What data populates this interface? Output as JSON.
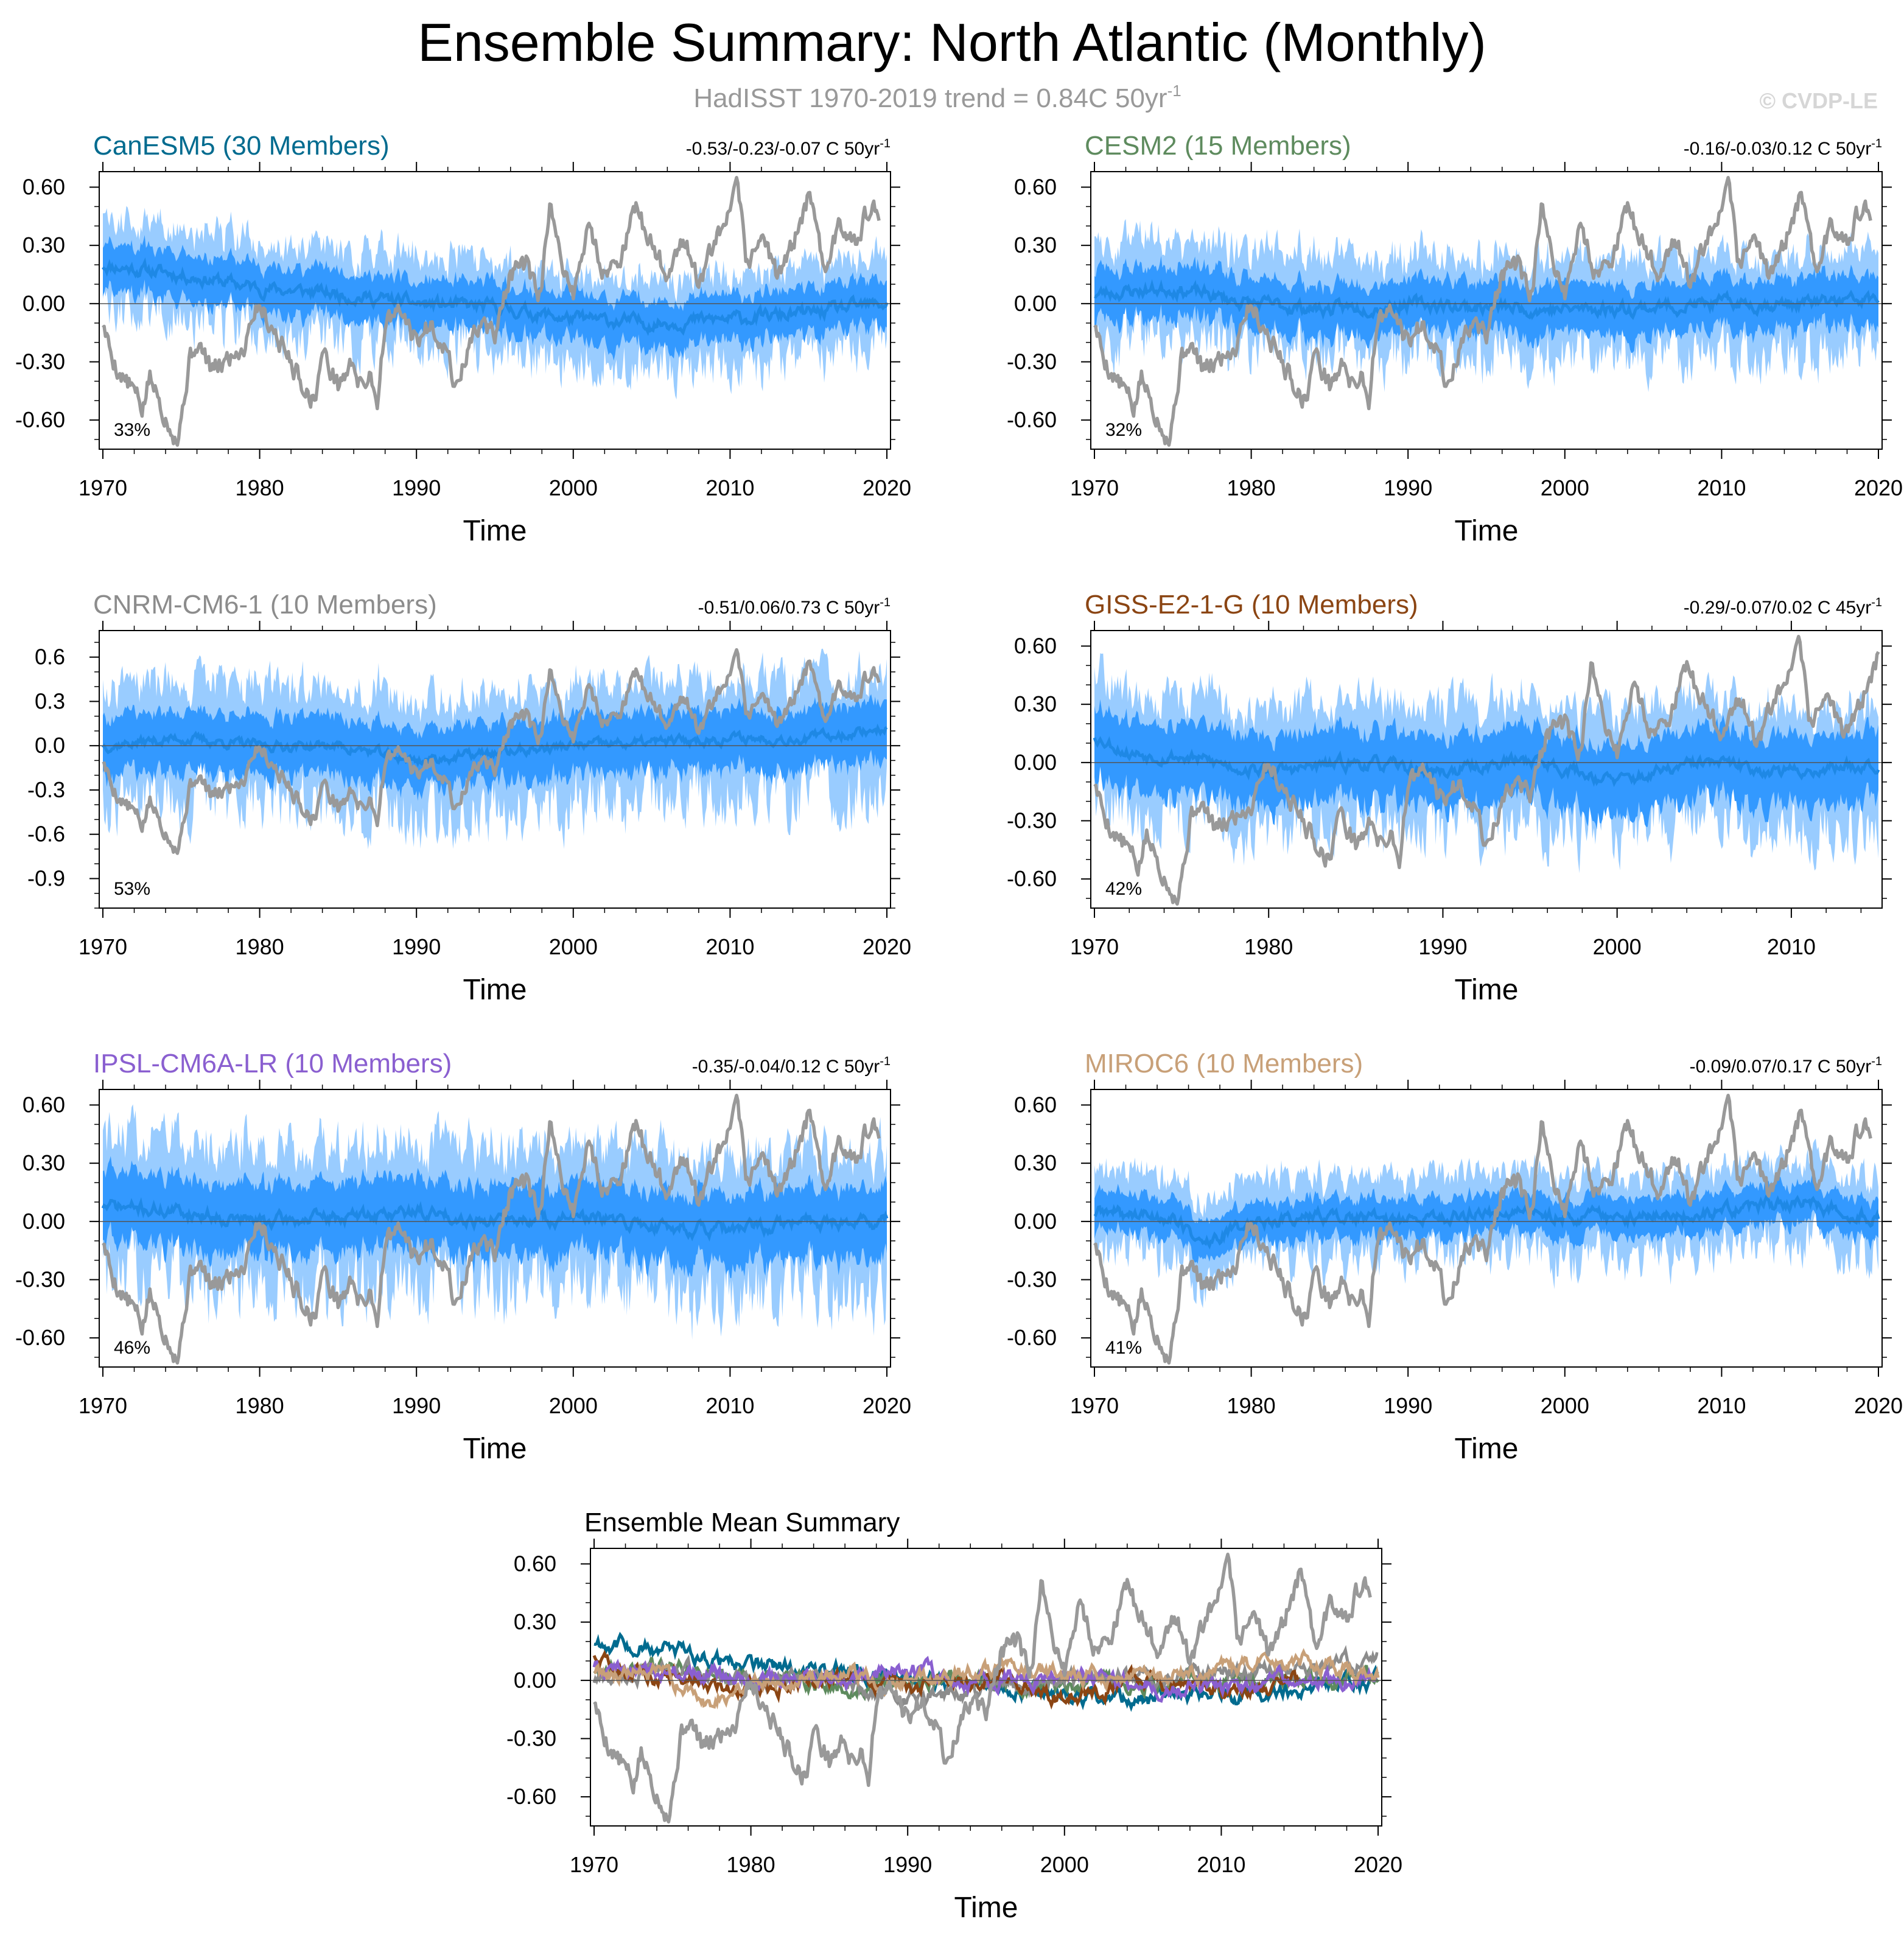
{
  "title": "Ensemble Summary: North Atlantic (Monthly)",
  "subtitle": {
    "text": "HadISST 1970-2019 trend = 0.84C 50yr",
    "sup": "-1"
  },
  "copyright": "© CVDP-LE",
  "colors": {
    "obs": "#999999",
    "band_outer": "#99ccff",
    "band_inner": "#3399ff",
    "ens_mean": "#1e88e5",
    "zero_line": "#555555"
  },
  "chart_data": [
    {
      "type": "line",
      "id": "canesm5",
      "title": "CanESM5 (30 Members)",
      "title_color": "#006b8f",
      "trend_text": "-0.53/-0.23/-0.07 C 50yr",
      "trend_sup": "-1",
      "percent": "33%",
      "xlabel": "Time",
      "xlim": [
        1970,
        2020
      ],
      "ylim": [
        -0.75,
        0.68
      ],
      "yticks": [
        0.6,
        0.3,
        0.0,
        -0.3,
        -0.6
      ],
      "ytick_labels": [
        "0.60",
        "0.30",
        "0.00",
        "-0.30",
        "-0.60"
      ],
      "xticks": [
        1970,
        1980,
        1990,
        2000,
        2010,
        2020
      ],
      "xtick_labels": [
        "1970",
        "1980",
        "1990",
        "2000",
        "2010",
        "2020"
      ],
      "ens_mean": {
        "x": [
          1970,
          1975,
          1980,
          1985,
          1990,
          1995,
          2000,
          2005,
          2010,
          2015,
          2020
        ],
        "y": [
          0.2,
          0.15,
          0.08,
          0.05,
          0.0,
          -0.02,
          -0.08,
          -0.1,
          -0.08,
          -0.05,
          0.0
        ]
      },
      "spread_inner": 0.12,
      "spread_outer": 0.22,
      "seed": 11,
      "end_year": 2020
    },
    {
      "type": "line",
      "id": "cesm2",
      "title": "CESM2 (15 Members)",
      "title_color": "#5e8b5e",
      "trend_text": "-0.16/-0.03/0.12 C 50yr",
      "trend_sup": "-1",
      "percent": "32%",
      "xlabel": "Time",
      "xlim": [
        1970,
        2020
      ],
      "ylim": [
        -0.75,
        0.68
      ],
      "yticks": [
        0.6,
        0.3,
        0.0,
        -0.3,
        -0.6
      ],
      "ytick_labels": [
        "0.60",
        "0.30",
        "0.00",
        "-0.30",
        "-0.60"
      ],
      "xticks": [
        1970,
        1980,
        1990,
        2000,
        2010,
        2020
      ],
      "xtick_labels": [
        "1970",
        "1980",
        "1990",
        "2000",
        "2010",
        "2020"
      ],
      "ens_mean": {
        "x": [
          1970,
          1975,
          1980,
          1985,
          1990,
          1995,
          2000,
          2005,
          2010,
          2015,
          2020
        ],
        "y": [
          0.05,
          0.08,
          0.0,
          -0.03,
          0.0,
          -0.02,
          -0.03,
          -0.02,
          0.0,
          0.0,
          0.02
        ]
      },
      "spread_inner": 0.13,
      "spread_outer": 0.24,
      "seed": 23,
      "end_year": 2020
    },
    {
      "type": "line",
      "id": "cnrm",
      "title": "CNRM-CM6-1 (10 Members)",
      "title_color": "#8c8c8c",
      "trend_text": "-0.51/0.06/0.73 C 50yr",
      "trend_sup": "-1",
      "percent": "53%",
      "xlabel": "Time",
      "xlim": [
        1970,
        2020
      ],
      "ylim": [
        -1.1,
        0.78
      ],
      "yticks": [
        0.6,
        0.3,
        0.0,
        -0.3,
        -0.6,
        -0.9
      ],
      "ytick_labels": [
        "0.6",
        "0.3",
        "0.0",
        "-0.3",
        "-0.6",
        "-0.9"
      ],
      "xticks": [
        1970,
        1980,
        1990,
        2000,
        2010,
        2020
      ],
      "xtick_labels": [
        "1970",
        "1980",
        "1990",
        "2000",
        "2010",
        "2020"
      ],
      "ens_mean": {
        "x": [
          1970,
          1975,
          1980,
          1985,
          1990,
          1995,
          2000,
          2005,
          2010,
          2015,
          2020
        ],
        "y": [
          0.0,
          0.05,
          0.0,
          0.0,
          -0.1,
          -0.05,
          0.0,
          0.02,
          0.05,
          0.05,
          0.12
        ]
      },
      "spread_inner": 0.2,
      "spread_outer": 0.38,
      "seed": 37,
      "end_year": 2020
    },
    {
      "type": "line",
      "id": "giss",
      "title": "GISS-E2-1-G (10 Members)",
      "title_color": "#8b4513",
      "trend_text": "-0.29/-0.07/0.02 C 45yr",
      "trend_sup": "-1",
      "percent": "42%",
      "xlabel": "Time",
      "xlim": [
        1970,
        2015
      ],
      "ylim": [
        -0.75,
        0.68
      ],
      "yticks": [
        0.6,
        0.3,
        0.0,
        -0.3,
        -0.6
      ],
      "ytick_labels": [
        "0.60",
        "0.30",
        "0.00",
        "-0.30",
        "-0.60"
      ],
      "xticks": [
        1970,
        1980,
        1990,
        2000,
        2010
      ],
      "xtick_labels": [
        "1970",
        "1980",
        "1990",
        "2000",
        "2010"
      ],
      "ens_mean": {
        "x": [
          1970,
          1972,
          1975,
          1980,
          1985,
          1990,
          1995,
          2000,
          2005,
          2010,
          2015
        ],
        "y": [
          0.14,
          0.05,
          0.03,
          -0.05,
          0.0,
          -0.05,
          0.02,
          -0.1,
          0.0,
          -0.05,
          0.0
        ]
      },
      "spread_inner": 0.18,
      "spread_outer": 0.3,
      "seed": 53,
      "end_year": 2015
    },
    {
      "type": "line",
      "id": "ipsl",
      "title": "IPSL-CM6A-LR (10 Members)",
      "title_color": "#8a5fd0",
      "trend_text": "-0.35/-0.04/0.12 C 50yr",
      "trend_sup": "-1",
      "percent": "46%",
      "xlabel": "Time",
      "xlim": [
        1970,
        2020
      ],
      "ylim": [
        -0.75,
        0.68
      ],
      "yticks": [
        0.6,
        0.3,
        0.0,
        -0.3,
        -0.6
      ],
      "ytick_labels": [
        "0.60",
        "0.30",
        "0.00",
        "-0.30",
        "-0.60"
      ],
      "xticks": [
        1970,
        1980,
        1990,
        2000,
        2010,
        2020
      ],
      "xtick_labels": [
        "1970",
        "1980",
        "1990",
        "2000",
        "2010",
        "2020"
      ],
      "ens_mean": {
        "x": [
          1970,
          1975,
          1980,
          1985,
          1990,
          1995,
          2000,
          2005,
          2010,
          2015,
          2020
        ],
        "y": [
          0.08,
          0.05,
          0.0,
          0.02,
          0.05,
          0.0,
          0.02,
          -0.02,
          -0.05,
          0.0,
          0.0
        ]
      },
      "spread_inner": 0.18,
      "spread_outer": 0.34,
      "seed": 71,
      "end_year": 2020
    },
    {
      "type": "line",
      "id": "miroc6",
      "title": "MIROC6 (10 Members)",
      "title_color": "#c8a078",
      "trend_text": "-0.09/0.07/0.17 C 50yr",
      "trend_sup": "-1",
      "percent": "41%",
      "xlabel": "Time",
      "xlim": [
        1970,
        2020
      ],
      "ylim": [
        -0.75,
        0.68
      ],
      "yticks": [
        0.6,
        0.3,
        0.0,
        -0.3,
        -0.6
      ],
      "ytick_labels": [
        "0.60",
        "0.30",
        "0.00",
        "-0.30",
        "-0.60"
      ],
      "xticks": [
        1970,
        1980,
        1990,
        2000,
        2010,
        2020
      ],
      "xtick_labels": [
        "1970",
        "1980",
        "1990",
        "2000",
        "2010",
        "2020"
      ],
      "ens_mean": {
        "x": [
          1970,
          1975,
          1977,
          1980,
          1985,
          1990,
          1995,
          2000,
          2005,
          2010,
          2015,
          2020
        ],
        "y": [
          0.05,
          0.02,
          -0.12,
          0.0,
          0.03,
          0.0,
          0.05,
          0.03,
          0.02,
          0.05,
          0.1,
          0.02
        ]
      },
      "spread_inner": 0.1,
      "spread_outer": 0.2,
      "seed": 89,
      "end_year": 2020
    },
    {
      "type": "line",
      "id": "summary",
      "title": "Ensemble Mean Summary",
      "title_color": "#000000",
      "xlabel": "Time",
      "xlim": [
        1970,
        2020
      ],
      "ylim": [
        -0.75,
        0.68
      ],
      "yticks": [
        0.6,
        0.3,
        0.0,
        -0.3,
        -0.6
      ],
      "ytick_labels": [
        "0.60",
        "0.30",
        "0.00",
        "-0.30",
        "-0.60"
      ],
      "xticks": [
        1970,
        1980,
        1990,
        2000,
        2010,
        2020
      ],
      "xtick_labels": [
        "1970",
        "1980",
        "1990",
        "2000",
        "2010",
        "2020"
      ],
      "series": [
        {
          "name": "CanESM5",
          "color": "#006b8f",
          "seed": 11
        },
        {
          "name": "CESM2",
          "color": "#5e8b5e",
          "seed": 23
        },
        {
          "name": "CNRM-CM6-1",
          "color": "#8c8c8c",
          "seed": 37
        },
        {
          "name": "GISS-E2-1-G",
          "color": "#8b4513",
          "seed": 53
        },
        {
          "name": "IPSL-CM6A-LR",
          "color": "#8a5fd0",
          "seed": 71
        },
        {
          "name": "MIROC6",
          "color": "#c8a078",
          "seed": 89
        }
      ]
    }
  ],
  "observations": {
    "name": "HadISST",
    "x": [
      1970,
      1970.5,
      1971,
      1972,
      1972.5,
      1973,
      1974,
      1974.8,
      1975.5,
      1976,
      1977,
      1978,
      1979,
      1979.5,
      1980,
      1981,
      1982,
      1983,
      1983.5,
      1984,
      1985,
      1986,
      1986.5,
      1987,
      1987.5,
      1988,
      1989,
      1990,
      1991,
      1992,
      1992.5,
      1993,
      1994,
      1995,
      1996,
      1997,
      1997.8,
      1998.5,
      1999,
      2000,
      2001,
      2002,
      2003,
      2004,
      2005,
      2006,
      2007,
      2008,
      2009,
      2010,
      2010.5,
      2011,
      2012,
      2013,
      2014,
      2015,
      2016,
      2017,
      2018,
      2019,
      2019.5
    ],
    "y": [
      -0.1,
      -0.25,
      -0.35,
      -0.45,
      -0.55,
      -0.38,
      -0.58,
      -0.7,
      -0.3,
      -0.2,
      -0.35,
      -0.28,
      -0.22,
      -0.05,
      0.0,
      -0.15,
      -0.3,
      -0.45,
      -0.5,
      -0.25,
      -0.42,
      -0.3,
      -0.45,
      -0.35,
      -0.5,
      -0.1,
      -0.05,
      -0.2,
      -0.1,
      -0.25,
      -0.45,
      -0.3,
      -0.1,
      -0.15,
      0.15,
      0.2,
      0.0,
      0.48,
      0.3,
      0.05,
      0.4,
      0.15,
      0.25,
      0.48,
      0.3,
      0.15,
      0.35,
      0.1,
      0.3,
      0.45,
      0.62,
      0.2,
      0.35,
      0.15,
      0.3,
      0.55,
      0.2,
      0.4,
      0.35,
      0.5,
      0.42
    ]
  }
}
